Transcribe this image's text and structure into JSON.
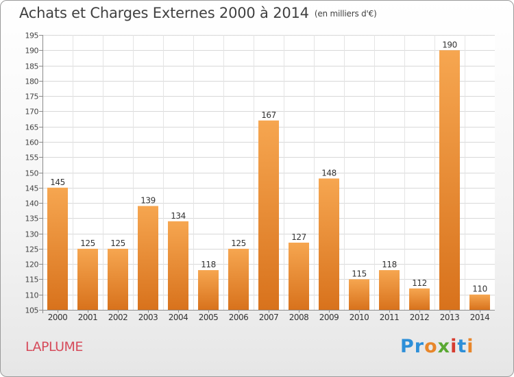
{
  "chart_data": {
    "type": "bar",
    "title": "Achats et Charges Externes 2000 à 2014",
    "subtitle": "(en milliers d'€)",
    "categories": [
      "2000",
      "2001",
      "2002",
      "2003",
      "2004",
      "2005",
      "2006",
      "2007",
      "2008",
      "2009",
      "2010",
      "2011",
      "2012",
      "2013",
      "2014"
    ],
    "values": [
      145,
      125,
      125,
      139,
      134,
      118,
      125,
      167,
      127,
      148,
      115,
      118,
      112,
      190,
      110
    ],
    "ylim": [
      105,
      195
    ],
    "yticks": [
      105,
      110,
      115,
      120,
      125,
      130,
      135,
      140,
      145,
      150,
      155,
      160,
      165,
      170,
      175,
      180,
      185,
      190,
      195
    ],
    "xlabel": "",
    "ylabel": "",
    "grid": true,
    "bar_color": "#f39c3c"
  },
  "footer": {
    "commune": "LAPLUME",
    "logo": [
      "Pr",
      "o",
      "x",
      "i",
      "t",
      "i"
    ]
  }
}
